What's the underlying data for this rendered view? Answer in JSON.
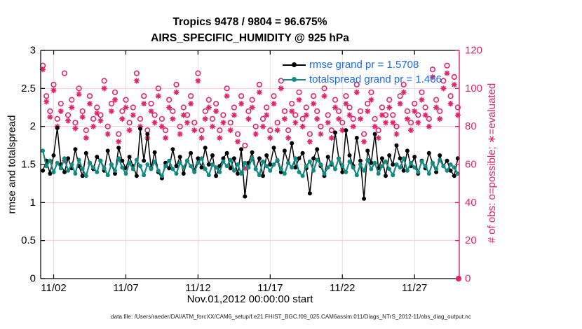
{
  "title": {
    "line1": "Tropics 9478 / 9804 = 96.675%",
    "line2": "AIRS_SPECIFIC_HUMIDITY @ 925 hPa"
  },
  "footer": {
    "data_file": "data file: /Users/raeder/DAI/ATM_forcXX/CAM6_setup/f.e21.FHIST_BGC.f09_025.CAM6assim.011/Diags_NTrS_2012-11/obs_diag_output.nc"
  },
  "colors": {
    "pink": "#e0256c",
    "grid_horizontal": "#f6c9d8",
    "grid_vertical": "#e3e0de",
    "teal": "#108c82",
    "black": "#000000",
    "legend_text_blue": "#1c6bf0",
    "background": "#ffffff"
  },
  "chart_data": {
    "type": "line",
    "title": "Tropics 9478 / 9804 = 96.675%",
    "subtitle": "AIRS_SPECIFIC_HUMIDITY @ 925 hPa",
    "xlabel": "Nov.01,2012 00:00:00 start",
    "ylabel_left": "rmse and totalspread",
    "ylabel_right": "# of obs: o=possible; ∗=evaluated",
    "obs_possible_total": 9804,
    "obs_evaluated_total": 9478,
    "obs_evaluated_percent": 96.675,
    "rmse_grand_pr": 1.5708,
    "totalspread_grand_pr": 1.466,
    "grid": true,
    "legend_position": "upper-center-right",
    "xlim_days": [
      1.1,
      30.1
    ],
    "ylim_left": [
      0,
      3
    ],
    "yticks_left": [
      0,
      0.5,
      1,
      1.5,
      2,
      2.5,
      3
    ],
    "ylim_right": [
      0,
      120
    ],
    "yticks_right": [
      0,
      20,
      40,
      60,
      80,
      100,
      120
    ],
    "x_ticks": [
      {
        "day": 2,
        "label": "11/02"
      },
      {
        "day": 7,
        "label": "11/07"
      },
      {
        "day": 12,
        "label": "11/12"
      },
      {
        "day": 17,
        "label": "11/17"
      },
      {
        "day": 22,
        "label": "11/22"
      },
      {
        "day": 27,
        "label": "11/27"
      }
    ],
    "x_start_day": 1.25,
    "x_step_days": 0.25,
    "series": [
      {
        "name": "rmse",
        "legend_label": "rmse grand pr = 1.5708",
        "axis": "left",
        "style": "line-dot",
        "color": "#000000",
        "values": [
          1.42,
          1.55,
          1.38,
          1.62,
          1.98,
          1.5,
          1.4,
          1.58,
          1.45,
          1.7,
          1.48,
          1.35,
          1.65,
          1.52,
          1.44,
          1.6,
          1.55,
          1.42,
          1.68,
          1.5,
          1.38,
          1.72,
          1.55,
          1.45,
          1.6,
          1.48,
          1.35,
          1.97,
          1.55,
          1.9,
          1.45,
          1.66,
          1.4,
          1.32,
          1.52,
          1.45,
          1.7,
          1.48,
          1.6,
          1.38,
          1.55,
          1.65,
          1.42,
          1.58,
          1.46,
          1.72,
          1.5,
          1.62,
          1.35,
          1.48,
          1.58,
          1.65,
          1.45,
          1.58,
          1.38,
          1.7,
          1.08,
          1.52,
          1.66,
          1.44,
          1.58,
          1.35,
          1.62,
          1.5,
          1.72,
          1.55,
          1.4,
          1.68,
          1.52,
          1.78,
          1.46,
          1.58,
          1.65,
          1.45,
          1.12,
          1.58,
          1.7,
          1.48,
          1.35,
          1.6,
          1.5,
          1.92,
          1.58,
          1.4,
          1.95,
          1.62,
          1.48,
          1.85,
          1.55,
          1.05,
          1.68,
          1.52,
          1.9,
          1.45,
          1.58,
          1.35,
          1.62,
          1.5,
          1.75,
          1.58,
          1.42,
          1.68,
          1.48,
          1.6,
          1.38,
          1.55,
          1.45,
          1.65,
          1.52,
          1.4,
          1.62,
          1.48,
          1.55,
          1.42,
          1.35,
          1.58
        ]
      },
      {
        "name": "totalspread",
        "legend_label": "totalspread grand pr = 1.466",
        "axis": "left",
        "style": "line-dot",
        "color": "#108c82",
        "values": [
          1.68,
          1.48,
          1.55,
          1.4,
          1.52,
          1.45,
          1.58,
          1.42,
          1.5,
          1.38,
          1.56,
          1.44,
          1.35,
          1.52,
          1.46,
          1.4,
          1.55,
          1.45,
          1.36,
          1.5,
          1.42,
          1.58,
          1.46,
          1.38,
          1.52,
          1.44,
          1.56,
          1.48,
          1.36,
          1.5,
          1.44,
          1.54,
          1.42,
          1.35,
          1.48,
          1.55,
          1.44,
          1.38,
          1.52,
          1.46,
          1.55,
          1.48,
          1.4,
          1.52,
          1.58,
          1.44,
          1.36,
          1.5,
          1.46,
          1.4,
          1.54,
          1.48,
          1.56,
          1.42,
          1.5,
          1.38,
          1.52,
          1.46,
          1.58,
          1.44,
          1.36,
          1.54,
          1.48,
          1.42,
          1.5,
          1.56,
          1.44,
          1.38,
          1.52,
          1.46,
          1.58,
          1.4,
          1.35,
          1.48,
          1.54,
          1.42,
          1.56,
          1.5,
          1.38,
          1.46,
          1.52,
          1.44,
          1.58,
          1.48,
          1.4,
          1.54,
          1.46,
          1.36,
          1.5,
          1.42,
          1.56,
          1.44,
          1.52,
          1.38,
          1.48,
          1.54,
          1.44,
          1.36,
          1.5,
          1.46,
          1.58,
          1.42,
          1.52,
          1.46,
          1.4,
          1.54,
          1.48,
          1.38,
          1.52,
          1.44,
          1.56,
          1.48,
          1.42,
          1.5,
          1.46,
          1.38
        ]
      },
      {
        "name": "possible",
        "legend_label": "o=possible",
        "axis": "right",
        "style": "marker-only",
        "marker": "circle",
        "color": "#e0256c",
        "values": [
          112,
          96,
          88,
          102,
          84,
          92,
          108,
          86,
          94,
          82,
          100,
          88,
          78,
          96,
          84,
          90,
          86,
          104,
          80,
          92,
          98,
          76,
          88,
          94,
          82,
          90,
          108,
          84,
          96,
          78,
          92,
          86,
          100,
          84,
          78,
          94,
          88,
          102,
          80,
          90,
          86,
          96,
          82,
          108,
          78,
          88,
          94,
          84,
          92,
          78,
          86,
          100,
          82,
          90,
          76,
          96,
          70,
          88,
          94,
          80,
          102,
          84,
          90,
          78,
          96,
          82,
          104,
          88,
          78,
          92,
          86,
          98,
          84,
          90,
          76,
          96,
          88,
          80,
          100,
          86,
          78,
          94,
          88,
          82,
          96,
          90,
          84,
          102,
          88,
          76,
          92,
          98,
          84,
          78,
          90,
          86,
          94,
          86,
          80,
          96,
          102,
          88,
          82,
          92,
          86,
          98,
          90,
          84,
          110,
          94,
          88,
          104,
          112,
          96,
          106,
          90
        ]
      },
      {
        "name": "evaluated",
        "legend_label": "∗=evaluated",
        "axis": "right",
        "style": "marker-only",
        "marker": "asterisk",
        "color": "#e0256c",
        "values": [
          110,
          93,
          85,
          99,
          80,
          88,
          62,
          83,
          90,
          79,
          97,
          85,
          74,
          92,
          80,
          87,
          83,
          100,
          76,
          88,
          94,
          72,
          84,
          90,
          78,
          86,
          104,
          80,
          92,
          74,
          88,
          82,
          96,
          80,
          74,
          90,
          84,
          98,
          76,
          86,
          82,
          92,
          78,
          104,
          74,
          84,
          90,
          80,
          88,
          74,
          82,
          96,
          78,
          86,
          72,
          92,
          58,
          84,
          90,
          76,
          98,
          80,
          86,
          74,
          92,
          78,
          100,
          84,
          74,
          88,
          82,
          94,
          80,
          86,
          72,
          92,
          84,
          76,
          96,
          82,
          74,
          90,
          84,
          78,
          92,
          86,
          80,
          98,
          84,
          72,
          88,
          94,
          80,
          74,
          86,
          82,
          90,
          82,
          76,
          92,
          98,
          84,
          78,
          88,
          82,
          94,
          86,
          80,
          106,
          90,
          84,
          100,
          108,
          92,
          102,
          86
        ]
      }
    ],
    "zero_point": {
      "day": 30.05,
      "possible": 0,
      "evaluated": 0
    }
  }
}
